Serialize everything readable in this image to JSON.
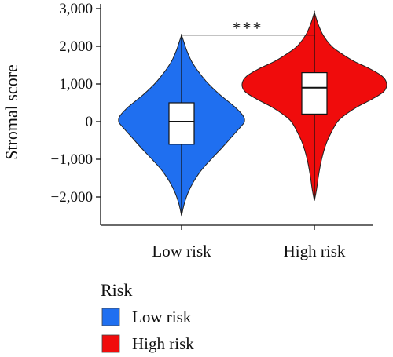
{
  "chart_data": {
    "type": "violin",
    "ylabel": "Stromal score",
    "ylim": [
      -2500,
      3000
    ],
    "yticks": [
      3000,
      2000,
      1000,
      0,
      -1000,
      -2000
    ],
    "ytick_labels": [
      "3,000",
      "2,000",
      "1,000",
      "0",
      "−1,000",
      "−2,000"
    ],
    "categories": [
      "Low risk",
      "High risk"
    ],
    "groups": [
      {
        "name": "Low risk",
        "color": "#1F6FF0",
        "range": [
          -2500,
          2300
        ],
        "median": 0,
        "q1": -600,
        "q3": 500,
        "density": [
          [
            -2500,
            0
          ],
          [
            -2200,
            0.04
          ],
          [
            -1900,
            0.1
          ],
          [
            -1600,
            0.19
          ],
          [
            -1300,
            0.31
          ],
          [
            -1000,
            0.47
          ],
          [
            -700,
            0.64
          ],
          [
            -400,
            0.8
          ],
          [
            -100,
            0.96
          ],
          [
            0,
            1.0
          ],
          [
            150,
            0.98
          ],
          [
            400,
            0.84
          ],
          [
            700,
            0.62
          ],
          [
            1000,
            0.43
          ],
          [
            1300,
            0.28
          ],
          [
            1600,
            0.16
          ],
          [
            1900,
            0.08
          ],
          [
            2100,
            0.04
          ],
          [
            2300,
            0
          ]
        ]
      },
      {
        "name": "High risk",
        "color": "#F00C0C",
        "range": [
          -2100,
          2900
        ],
        "median": 900,
        "q1": 200,
        "q3": 1300,
        "density": [
          [
            -2100,
            0
          ],
          [
            -1800,
            0.03
          ],
          [
            -1400,
            0.06
          ],
          [
            -1000,
            0.1
          ],
          [
            -600,
            0.16
          ],
          [
            -300,
            0.23
          ],
          [
            0,
            0.32
          ],
          [
            200,
            0.44
          ],
          [
            400,
            0.6
          ],
          [
            600,
            0.8
          ],
          [
            800,
            0.96
          ],
          [
            1000,
            1.0
          ],
          [
            1200,
            0.94
          ],
          [
            1400,
            0.77
          ],
          [
            1600,
            0.55
          ],
          [
            1800,
            0.38
          ],
          [
            2000,
            0.24
          ],
          [
            2300,
            0.12
          ],
          [
            2600,
            0.05
          ],
          [
            2900,
            0
          ]
        ]
      }
    ],
    "significance": {
      "label": "***",
      "between": [
        "Low risk",
        "High risk"
      ],
      "y": 2300
    },
    "legend": {
      "title": "Risk",
      "position": "bottom-left",
      "entries": [
        {
          "label": "Low risk",
          "color": "#1F6FF0"
        },
        {
          "label": "High risk",
          "color": "#F00C0C"
        }
      ]
    }
  }
}
